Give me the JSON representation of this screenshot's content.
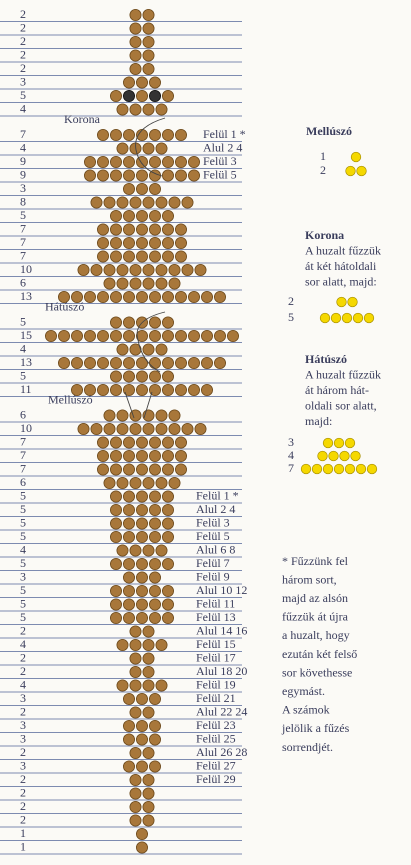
{
  "rows": [
    {
      "count": 2
    },
    {
      "count": 2
    },
    {
      "count": 2
    },
    {
      "count": 2
    },
    {
      "count": 2
    },
    {
      "count": 3
    },
    {
      "count": 5,
      "dark": [
        1,
        3
      ]
    },
    {
      "count": 4
    },
    {
      "count": 7,
      "section": "Korona",
      "note": "Felül 1 *"
    },
    {
      "count": 4,
      "note": "Alul  2 4"
    },
    {
      "count": 9,
      "note": "Felül  3"
    },
    {
      "count": 9,
      "note": "Felül 5"
    },
    {
      "count": 3
    },
    {
      "count": 8
    },
    {
      "count": 5
    },
    {
      "count": 7
    },
    {
      "count": 7
    },
    {
      "count": 7
    },
    {
      "count": 10
    },
    {
      "count": 6
    },
    {
      "count": 13
    },
    {
      "count": 5,
      "section": "Hátúszó"
    },
    {
      "count": 15
    },
    {
      "count": 4
    },
    {
      "count": 13
    },
    {
      "count": 5
    },
    {
      "count": 11
    },
    {
      "count": 6,
      "section": "Mellúszó"
    },
    {
      "count": 10
    },
    {
      "count": 7
    },
    {
      "count": 7
    },
    {
      "count": 7
    },
    {
      "count": 6
    },
    {
      "count": 5,
      "note": "Felül 1 *"
    },
    {
      "count": 5,
      "note": "Alul 2  4"
    },
    {
      "count": 5,
      "note": "Felül 3"
    },
    {
      "count": 5,
      "note": "Felül 5"
    },
    {
      "count": 4,
      "note": "Alul 6  8"
    },
    {
      "count": 5,
      "note": "Felül 7"
    },
    {
      "count": 3,
      "note": "Felül 9"
    },
    {
      "count": 5,
      "note": "Alul 10  12"
    },
    {
      "count": 5,
      "note": "Felül 11"
    },
    {
      "count": 5,
      "note": "Felül 13"
    },
    {
      "count": 2,
      "note": "Alul 14  16"
    },
    {
      "count": 4,
      "note": "Felül 15"
    },
    {
      "count": 2,
      "note": "Felül 17"
    },
    {
      "count": 2,
      "note": "Alul 18  20"
    },
    {
      "count": 4,
      "note": "Felül 19"
    },
    {
      "count": 3,
      "note": "Felül 21"
    },
    {
      "count": 2,
      "note": "Alul 22  24"
    },
    {
      "count": 3,
      "note": "Felül 23"
    },
    {
      "count": 3,
      "note": "Felül 25"
    },
    {
      "count": 2,
      "note": "Alul 26  28"
    },
    {
      "count": 3,
      "note": "Felül 27"
    },
    {
      "count": 2,
      "note": "Felül 29"
    },
    {
      "count": 2
    },
    {
      "count": 2
    },
    {
      "count": 2
    },
    {
      "count": 1
    },
    {
      "count": 1
    }
  ],
  "legend": [
    {
      "title": "Mellúszó",
      "rows": [
        1,
        2
      ]
    },
    {
      "title": "Korona",
      "text": [
        "A huzalt fűzzük",
        "át két hátoldali",
        "sor alatt, majd:"
      ],
      "rows": [
        2,
        5
      ]
    },
    {
      "title": "Hátúszó",
      "text": [
        "A huzalt fűzzük",
        "át három hát-",
        "oldali sor alatt,",
        "majd:"
      ],
      "rows": [
        3,
        4,
        7
      ]
    }
  ],
  "footnote": [
    "* Fűzzünk fel",
    "három sort,",
    "majd az alsón",
    "fűzzük át újra",
    "a huzalt, hogy",
    "ezután két felső",
    "sor követhesse",
    "egymást.",
    "A számok",
    "jelölik a fűzés",
    "sorrendjét."
  ]
}
